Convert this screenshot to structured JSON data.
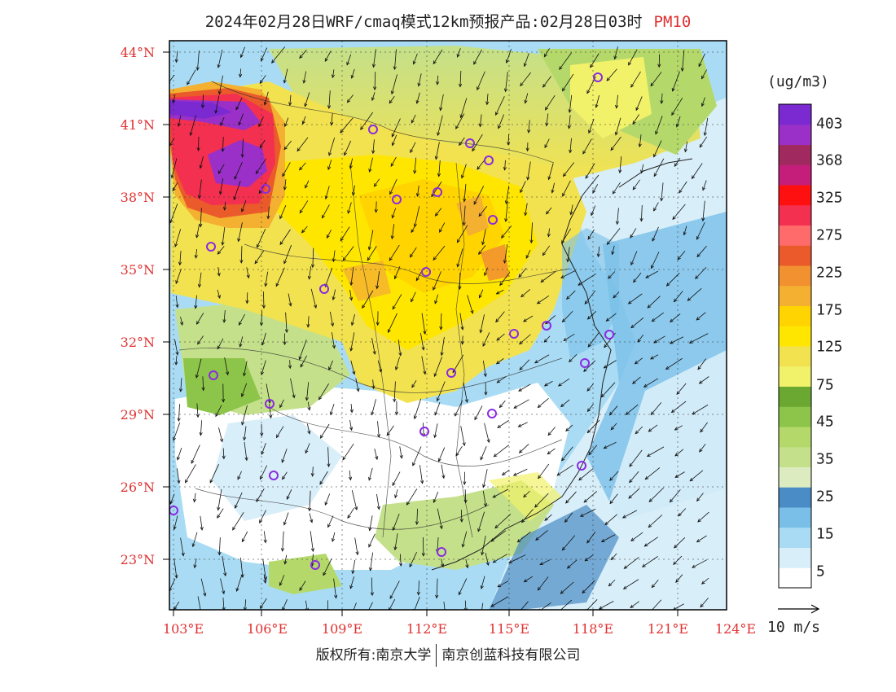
{
  "header": {
    "title": "2024年02月28日WRF/cmaq模式12km预报产品:02月28日03时",
    "product": "PM10"
  },
  "map": {
    "lat_labels": [
      "44°N",
      "41°N",
      "38°N",
      "35°N",
      "32°N",
      "29°N",
      "26°N",
      "23°N"
    ],
    "lon_labels": [
      "103°E",
      "106°E",
      "109°E",
      "112°E",
      "115°E",
      "118°E",
      "121°E",
      "124°E"
    ]
  },
  "colorbar": {
    "unit": "(ug/m3)",
    "colors": [
      "#ffffff",
      "#d8eef9",
      "#a9dcf4",
      "#79bfe8",
      "#4a8cc5",
      "#dcecc0",
      "#c4e08a",
      "#b4d96a",
      "#8cc54a",
      "#6aa832",
      "#f2f26a",
      "#f2e250",
      "#ffe600",
      "#ffd400",
      "#f4b030",
      "#f29130",
      "#ea5a2a",
      "#ff6a6a",
      "#f43050",
      "#ff1010",
      "#c41e7a",
      "#a02a60",
      "#9a30c8",
      "#7a2ad0"
    ],
    "labels": [
      "5",
      "15",
      "25",
      "35",
      "45",
      "75",
      "125",
      "175",
      "225",
      "275",
      "325",
      "368",
      "403"
    ]
  },
  "wind_reference": "10 m/s",
  "footer": {
    "copyright": "版权所有:南京大学",
    "company": "南京创蓝科技有限公司"
  },
  "palette": {
    "accent_red": "#e03030",
    "city_marker": "#8a2be2"
  }
}
